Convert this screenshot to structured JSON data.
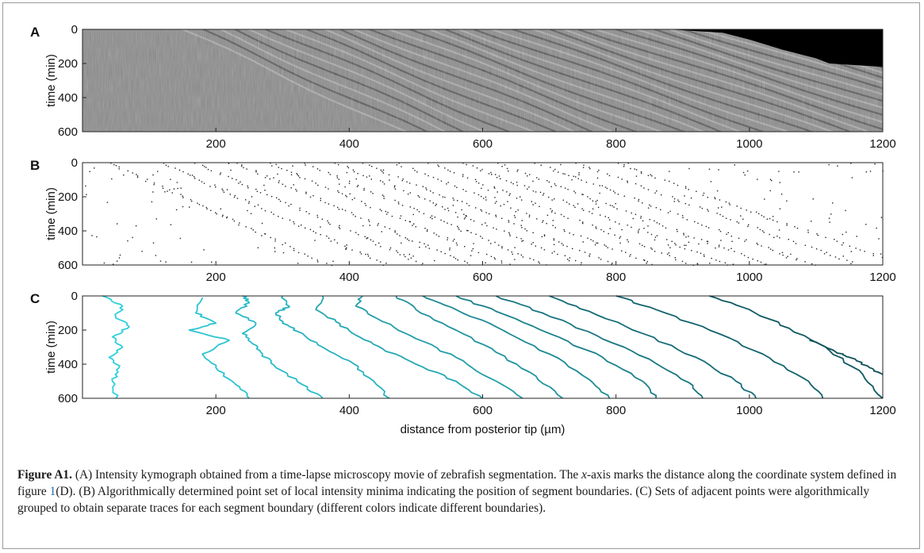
{
  "figure": {
    "caption": {
      "label": "Figure A1.",
      "part1": "(A) Intensity kymograph obtained from a time-lapse microscopy movie of zebrafish segmentation. The ",
      "x_italic": "x",
      "part2": "-axis marks the distance along the coordinate system defined in figure ",
      "ref": "1",
      "part3": "(D). (B) Algorithmically determined point set of local intensity minima indicating the position of segment boundaries. (C) Sets of adjacent points were algorithmically grouped to obtain separate traces for each segment boundary (different colors indicate different boundaries)."
    }
  },
  "chart_data": [
    {
      "panel": "A",
      "type": "heatmap",
      "description_of_content": "grayscale intensity kymograph with diagonal dark stripes; black masked region at upper right",
      "xlabel": "",
      "ylabel": "time (min)",
      "xlim": [
        0,
        1200
      ],
      "ylim": [
        0,
        600
      ],
      "y_inverted": true,
      "xticks": [
        200,
        400,
        600,
        800,
        1000,
        1200
      ],
      "yticks": [
        0,
        200,
        400,
        600
      ],
      "mask_boundary": {
        "x": [
          880,
          960,
          1000,
          1050,
          1100,
          1120,
          1200
        ],
        "y": [
          0,
          20,
          60,
          120,
          170,
          200,
          220
        ]
      },
      "colors": {
        "light": "#b5b5b5",
        "mid": "#8c8c8c",
        "dark": "#4a4a4a",
        "mask": "#000000"
      }
    },
    {
      "panel": "B",
      "type": "scatter",
      "xlabel": "",
      "ylabel": "time (min)",
      "xlim": [
        0,
        1200
      ],
      "ylim": [
        0,
        600
      ],
      "y_inverted": true,
      "xticks": [
        200,
        400,
        600,
        800,
        1000,
        1200
      ],
      "yticks": [
        0,
        200,
        400,
        600
      ],
      "point_color": "#222222",
      "boundaries_x0": [
        40,
        120,
        170,
        230,
        280,
        330,
        380,
        420,
        470,
        520,
        570,
        620,
        680,
        740,
        800
      ],
      "boundary_slope_min_per_um": 1.0,
      "noise_points": 260
    },
    {
      "panel": "C",
      "type": "line",
      "xlabel": "distance from posterior tip (µm)",
      "ylabel": "time (min)",
      "xlim": [
        0,
        1200
      ],
      "ylim": [
        0,
        600
      ],
      "y_inverted": true,
      "xticks": [
        200,
        400,
        600,
        800,
        1000,
        1200
      ],
      "yticks": [
        0,
        200,
        400,
        600
      ],
      "series": [
        {
          "color": "#2fd0dc",
          "x": [
            30,
            60,
            50,
            70,
            45,
            60,
            40,
            55,
            45,
            50
          ],
          "y": [
            0,
            60,
            120,
            180,
            240,
            300,
            360,
            420,
            500,
            600
          ]
        },
        {
          "color": "#2cc4d2",
          "x": [
            180,
            170,
            200,
            160,
            220,
            180,
            200,
            230,
            250
          ],
          "y": [
            10,
            100,
            160,
            200,
            260,
            340,
            420,
            520,
            600
          ]
        },
        {
          "color": "#29bcc8",
          "x": [
            240,
            250,
            230,
            260,
            240,
            255,
            270,
            290,
            330,
            360
          ],
          "y": [
            0,
            40,
            100,
            160,
            220,
            280,
            340,
            420,
            520,
            600
          ]
        },
        {
          "color": "#27b2bf",
          "x": [
            300,
            310,
            290,
            300,
            330,
            360,
            400,
            430,
            460
          ],
          "y": [
            0,
            60,
            100,
            160,
            220,
            300,
            380,
            480,
            600
          ]
        },
        {
          "color": "#24a8b4",
          "x": [
            360,
            350,
            380,
            410,
            450,
            500,
            560,
            600
          ],
          "y": [
            0,
            80,
            150,
            230,
            310,
            400,
            500,
            600
          ]
        },
        {
          "color": "#219ea9",
          "x": [
            420,
            410,
            450,
            500,
            560,
            610,
            660
          ],
          "y": [
            0,
            60,
            150,
            250,
            360,
            480,
            600
          ]
        },
        {
          "color": "#1f949f",
          "x": [
            470,
            500,
            560,
            620,
            680,
            720
          ],
          "y": [
            0,
            80,
            200,
            330,
            470,
            600
          ]
        },
        {
          "color": "#1c8a95",
          "x": [
            510,
            560,
            630,
            700,
            760,
            790
          ],
          "y": [
            0,
            80,
            200,
            340,
            490,
            600
          ]
        },
        {
          "color": "#19808a",
          "x": [
            560,
            620,
            700,
            780,
            840,
            860
          ],
          "y": [
            0,
            90,
            220,
            360,
            500,
            600
          ]
        },
        {
          "color": "#177680",
          "x": [
            620,
            690,
            770,
            850,
            910,
            930
          ],
          "y": [
            0,
            100,
            230,
            370,
            510,
            600
          ]
        },
        {
          "color": "#146c76",
          "x": [
            700,
            760,
            840,
            920,
            980,
            1010
          ],
          "y": [
            0,
            90,
            220,
            360,
            500,
            600
          ]
        },
        {
          "color": "#12636c",
          "x": [
            800,
            860,
            940,
            1020,
            1080,
            1110
          ],
          "y": [
            0,
            80,
            200,
            340,
            480,
            600
          ]
        },
        {
          "color": "#0f5962",
          "x": [
            940,
            1000,
            1060,
            1120,
            1170,
            1200
          ],
          "y": [
            0,
            80,
            190,
            320,
            460,
            600
          ]
        },
        {
          "color": "#0d5058",
          "x": [
            1090,
            1130,
            1150,
            1180,
            1200
          ],
          "y": [
            260,
            330,
            360,
            420,
            460
          ]
        }
      ]
    }
  ],
  "panel_labels": [
    "A",
    "B",
    "C"
  ]
}
